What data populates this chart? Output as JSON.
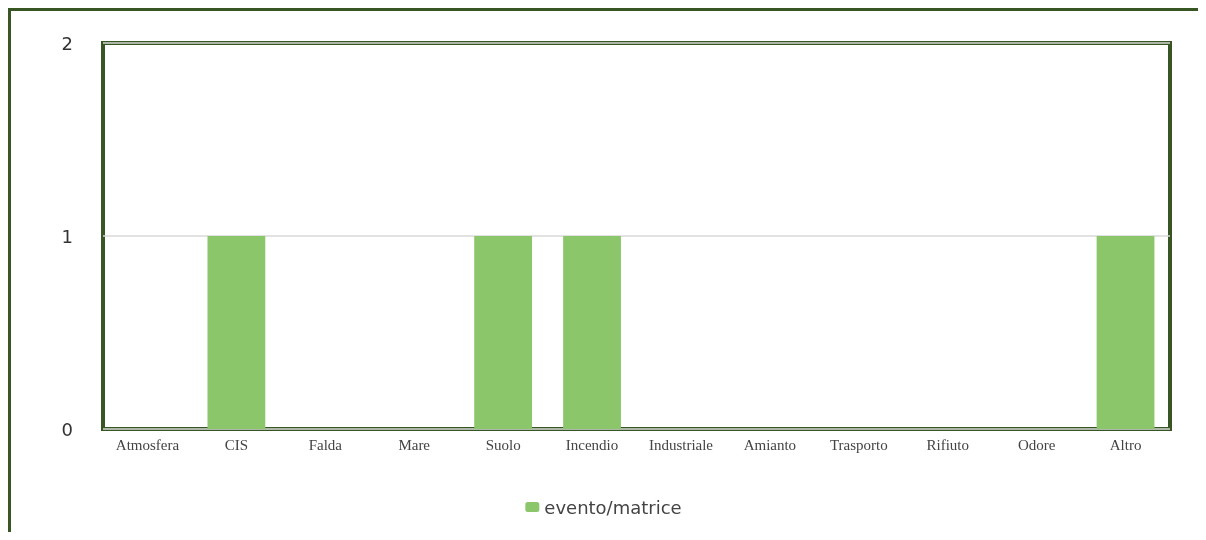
{
  "chart_data": {
    "type": "bar",
    "categories": [
      "Atmosfera",
      "CIS",
      "Falda",
      "Mare",
      "Suolo",
      "Incendio",
      "Industriale",
      "Amianto",
      "Trasporto",
      "Rifiuto",
      "Odore",
      "Altro"
    ],
    "series": [
      {
        "name": "evento/matrice",
        "color": "#8cc66a",
        "values": [
          0,
          1,
          0,
          0,
          1,
          1,
          0,
          0,
          0,
          0,
          0,
          1
        ]
      }
    ],
    "ylim": [
      0,
      2
    ],
    "yticks": [
      0,
      1,
      2
    ],
    "grid": "y",
    "legend": "bottom"
  }
}
